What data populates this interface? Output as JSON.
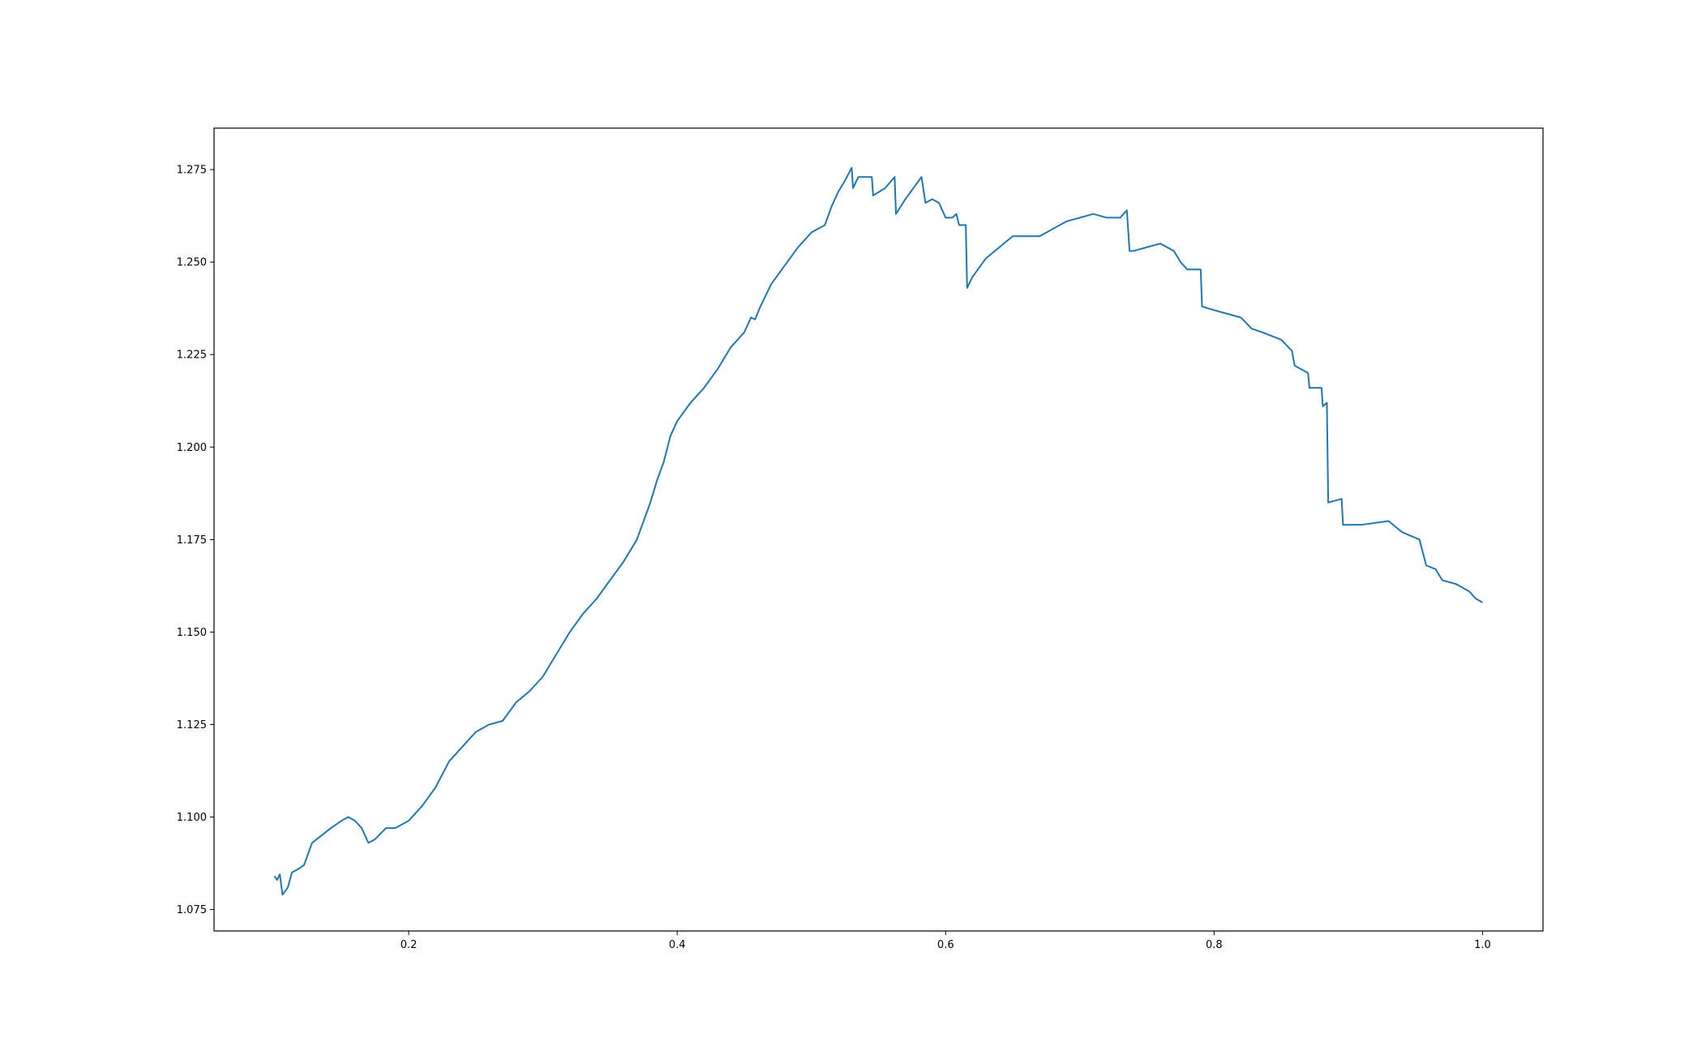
{
  "chart_data": {
    "type": "line",
    "color": "#1f77b4",
    "xlim": [
      0.055,
      1.045
    ],
    "ylim": [
      1.0692,
      1.2862
    ],
    "xticks": [
      0.2,
      0.4,
      0.6,
      0.8,
      {
        "value": 1.0,
        "label": "1.0"
      }
    ],
    "yticks": [
      1.075,
      {
        "value": 1.1,
        "label": "1.100"
      },
      1.125,
      {
        "value": 1.15,
        "label": "1.150"
      },
      1.175,
      {
        "value": 1.2,
        "label": "1.200"
      },
      1.225,
      {
        "value": 1.25,
        "label": "1.250"
      },
      1.275
    ],
    "x": [
      0.1,
      0.102,
      0.104,
      0.106,
      0.11,
      0.113,
      0.118,
      0.122,
      0.128,
      0.135,
      0.142,
      0.15,
      0.155,
      0.16,
      0.165,
      0.17,
      0.175,
      0.183,
      0.19,
      0.2,
      0.21,
      0.22,
      0.23,
      0.24,
      0.25,
      0.26,
      0.27,
      0.28,
      0.29,
      0.3,
      0.31,
      0.32,
      0.33,
      0.34,
      0.35,
      0.36,
      0.37,
      0.375,
      0.38,
      0.385,
      0.39,
      0.395,
      0.4,
      0.41,
      0.42,
      0.43,
      0.44,
      0.45,
      0.455,
      0.458,
      0.462,
      0.47,
      0.48,
      0.49,
      0.5,
      0.51,
      0.515,
      0.52,
      0.525,
      0.53,
      0.531,
      0.535,
      0.545,
      0.546,
      0.555,
      0.562,
      0.563,
      0.57,
      0.578,
      0.582,
      0.585,
      0.59,
      0.595,
      0.6,
      0.605,
      0.608,
      0.61,
      0.615,
      0.616,
      0.62,
      0.63,
      0.64,
      0.65,
      0.66,
      0.67,
      0.68,
      0.69,
      0.7,
      0.71,
      0.72,
      0.73,
      0.735,
      0.737,
      0.74,
      0.75,
      0.76,
      0.77,
      0.775,
      0.78,
      0.789,
      0.79,
      0.791,
      0.8,
      0.81,
      0.82,
      0.828,
      0.836,
      0.85,
      0.858,
      0.86,
      0.87,
      0.871,
      0.88,
      0.881,
      0.884,
      0.885,
      0.895,
      0.896,
      0.91,
      0.93,
      0.94,
      0.953,
      0.958,
      0.965,
      0.97,
      0.98,
      0.99,
      0.995,
      1.0
    ],
    "values": [
      1.084,
      1.083,
      1.0845,
      1.079,
      1.081,
      1.085,
      1.086,
      1.087,
      1.093,
      1.095,
      1.097,
      1.099,
      1.1,
      1.099,
      1.097,
      1.093,
      1.094,
      1.097,
      1.097,
      1.099,
      1.103,
      1.108,
      1.115,
      1.119,
      1.123,
      1.125,
      1.126,
      1.131,
      1.134,
      1.138,
      1.144,
      1.15,
      1.155,
      1.159,
      1.164,
      1.169,
      1.175,
      1.18,
      1.185,
      1.191,
      1.196,
      1.203,
      1.207,
      1.212,
      1.216,
      1.221,
      1.227,
      1.231,
      1.235,
      1.2345,
      1.238,
      1.244,
      1.249,
      1.254,
      1.258,
      1.26,
      1.265,
      1.269,
      1.272,
      1.2755,
      1.27,
      1.273,
      1.273,
      1.268,
      1.27,
      1.273,
      1.263,
      1.267,
      1.271,
      1.273,
      1.266,
      1.267,
      1.266,
      1.262,
      1.262,
      1.263,
      1.26,
      1.26,
      1.243,
      1.246,
      1.251,
      1.254,
      1.257,
      1.257,
      1.257,
      1.259,
      1.261,
      1.262,
      1.263,
      1.262,
      1.262,
      1.264,
      1.253,
      1.253,
      1.254,
      1.255,
      1.253,
      1.25,
      1.248,
      1.248,
      1.248,
      1.238,
      1.237,
      1.236,
      1.235,
      1.232,
      1.231,
      1.229,
      1.226,
      1.222,
      1.22,
      1.216,
      1.216,
      1.211,
      1.212,
      1.185,
      1.186,
      1.179,
      1.179,
      1.18,
      1.177,
      1.175,
      1.168,
      1.167,
      1.164,
      1.163,
      1.161,
      1.159,
      1.158
    ]
  }
}
